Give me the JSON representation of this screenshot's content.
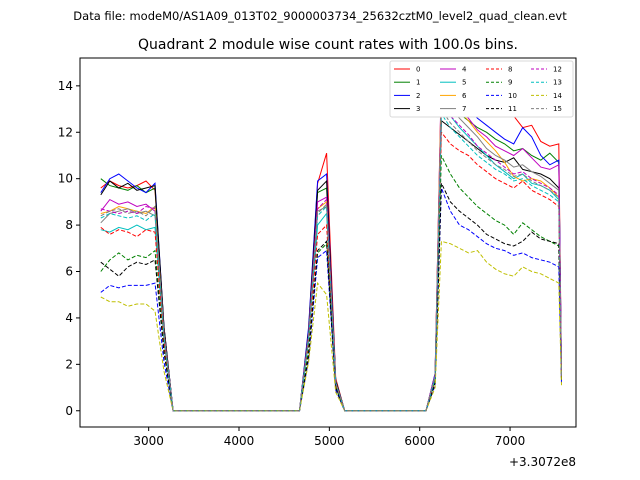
{
  "chart_data": {
    "type": "line",
    "suptitle": "Data file: modeM0/AS1A09_013T02_9000003734_25632cztM0_level2_quad_clean.evt",
    "title": "Quadrant 2 module wise count rates with 100.0s bins.",
    "xlabel": "",
    "ylabel": "",
    "offset_label": "+3.3072e8",
    "xlim": [
      2240,
      7730
    ],
    "ylim": [
      -0.7,
      15.2
    ],
    "xticks": [
      3000,
      4000,
      5000,
      6000,
      7000
    ],
    "xtick_labels": [
      "3000",
      "4000",
      "5000",
      "6000",
      "7000"
    ],
    "yticks": [
      0,
      2,
      4,
      6,
      8,
      10,
      12,
      14
    ],
    "ytick_labels": [
      "0",
      "2",
      "4",
      "6",
      "8",
      "10",
      "12",
      "14"
    ],
    "legend_loc": "upper right",
    "x": [
      2470,
      2570,
      2670,
      2770,
      2870,
      2970,
      3070,
      3170,
      3270,
      3370,
      3470,
      3570,
      3670,
      3770,
      3870,
      3970,
      4070,
      4170,
      4270,
      4370,
      4470,
      4570,
      4670,
      4770,
      4870,
      4970,
      5070,
      5170,
      5270,
      5370,
      5470,
      5570,
      5670,
      5770,
      5870,
      5970,
      6070,
      6170,
      6240,
      6340,
      6440,
      6540,
      6640,
      6740,
      6840,
      6940,
      7040,
      7140,
      7240,
      7340,
      7440,
      7540,
      7570
    ],
    "series": [
      {
        "name": "0",
        "color": "#ff0000",
        "dash": false,
        "values": [
          9.6,
          9.9,
          9.7,
          9.6,
          9.7,
          9.9,
          9.5,
          3.6,
          0,
          0,
          0,
          0,
          0,
          0,
          0,
          0,
          0,
          0,
          0,
          0,
          0,
          0,
          0,
          3.5,
          9.8,
          11.1,
          1.4,
          0,
          0,
          0,
          0,
          0,
          0,
          0,
          0,
          0,
          0,
          1.6,
          14.3,
          13.9,
          13.7,
          13.5,
          13.2,
          12.9,
          12.8,
          13.0,
          12.7,
          12.2,
          12.3,
          11.6,
          11.4,
          11.5,
          1.7
        ]
      },
      {
        "name": "1",
        "color": "#008000",
        "dash": false,
        "values": [
          10.0,
          9.7,
          9.6,
          9.5,
          9.7,
          9.4,
          9.6,
          3.5,
          0,
          0,
          0,
          0,
          0,
          0,
          0,
          0,
          0,
          0,
          0,
          0,
          0,
          0,
          0,
          3.4,
          9.4,
          9.6,
          1.3,
          0,
          0,
          0,
          0,
          0,
          0,
          0,
          0,
          0,
          0,
          1.5,
          13.6,
          13.2,
          12.8,
          12.5,
          12.2,
          12.0,
          11.7,
          11.5,
          11.2,
          11.3,
          11.0,
          10.8,
          11.1,
          10.7,
          1.6
        ]
      },
      {
        "name": "2",
        "color": "#0000ff",
        "dash": false,
        "values": [
          9.4,
          10.0,
          10.2,
          9.9,
          9.6,
          9.4,
          9.8,
          3.6,
          0,
          0,
          0,
          0,
          0,
          0,
          0,
          0,
          0,
          0,
          0,
          0,
          0,
          0,
          0,
          3.6,
          9.9,
          10.2,
          1.3,
          0,
          0,
          0,
          0,
          0,
          0,
          0,
          0,
          0,
          0,
          1.6,
          13.9,
          13.7,
          13.4,
          13.0,
          12.6,
          12.3,
          12.0,
          11.7,
          11.5,
          12.2,
          11.8,
          11.0,
          10.6,
          10.8,
          1.6
        ]
      },
      {
        "name": "3",
        "color": "#000000",
        "dash": false,
        "values": [
          9.3,
          9.9,
          9.6,
          9.8,
          9.5,
          9.6,
          9.7,
          3.6,
          0,
          0,
          0,
          0,
          0,
          0,
          0,
          0,
          0,
          0,
          0,
          0,
          0,
          0,
          0,
          3.4,
          9.5,
          9.9,
          1.3,
          0,
          0,
          0,
          0,
          0,
          0,
          0,
          0,
          0,
          0,
          1.5,
          12.5,
          12.2,
          11.9,
          11.6,
          11.3,
          11.0,
          10.8,
          10.7,
          10.9,
          10.4,
          10.3,
          10.2,
          10.0,
          9.6,
          1.5
        ]
      },
      {
        "name": "4",
        "color": "#bf00bf",
        "dash": false,
        "values": [
          8.6,
          9.1,
          8.9,
          9.0,
          8.8,
          8.9,
          8.6,
          3.3,
          0,
          0,
          0,
          0,
          0,
          0,
          0,
          0,
          0,
          0,
          0,
          0,
          0,
          0,
          0,
          3.2,
          9.0,
          9.2,
          1.2,
          0,
          0,
          0,
          0,
          0,
          0,
          0,
          0,
          0,
          0,
          1.5,
          14.5,
          13.6,
          13.0,
          12.6,
          12.1,
          11.8,
          11.4,
          11.2,
          11.0,
          11.3,
          10.9,
          10.5,
          10.4,
          10.6,
          1.6
        ]
      },
      {
        "name": "5",
        "color": "#00bfbf",
        "dash": false,
        "values": [
          7.8,
          7.7,
          7.9,
          7.8,
          8.0,
          7.8,
          7.9,
          3.0,
          0,
          0,
          0,
          0,
          0,
          0,
          0,
          0,
          0,
          0,
          0,
          0,
          0,
          0,
          0,
          3.0,
          8.0,
          8.5,
          1.1,
          0,
          0,
          0,
          0,
          0,
          0,
          0,
          0,
          0,
          0,
          1.4,
          13.2,
          12.7,
          12.2,
          11.8,
          11.4,
          11.0,
          10.6,
          10.3,
          10.0,
          10.2,
          9.8,
          9.7,
          9.5,
          9.1,
          1.5
        ]
      },
      {
        "name": "6",
        "color": "#ffa500",
        "dash": false,
        "values": [
          8.5,
          8.6,
          8.8,
          8.7,
          8.6,
          8.5,
          8.8,
          3.3,
          0,
          0,
          0,
          0,
          0,
          0,
          0,
          0,
          0,
          0,
          0,
          0,
          0,
          0,
          0,
          3.2,
          8.7,
          9.0,
          1.2,
          0,
          0,
          0,
          0,
          0,
          0,
          0,
          0,
          0,
          0,
          1.5,
          14.2,
          13.4,
          12.9,
          12.5,
          12.0,
          11.6,
          11.2,
          10.7,
          10.1,
          9.9,
          10.0,
          9.9,
          9.6,
          9.2,
          1.6
        ]
      },
      {
        "name": "7",
        "color": "#808080",
        "dash": false,
        "values": [
          8.1,
          8.5,
          8.6,
          8.7,
          8.5,
          8.6,
          8.4,
          3.2,
          0,
          0,
          0,
          0,
          0,
          0,
          0,
          0,
          0,
          0,
          0,
          0,
          0,
          0,
          0,
          3.2,
          8.6,
          8.8,
          1.2,
          0,
          0,
          0,
          0,
          0,
          0,
          0,
          0,
          0,
          0,
          1.5,
          13.6,
          13.0,
          12.6,
          12.2,
          11.8,
          11.3,
          11.0,
          10.8,
          10.5,
          10.6,
          10.3,
          10.1,
          9.8,
          9.5,
          1.5
        ]
      },
      {
        "name": "8",
        "color": "#ff0000",
        "dash": true,
        "values": [
          7.9,
          7.6,
          7.8,
          7.7,
          7.5,
          7.8,
          7.7,
          2.9,
          0,
          0,
          0,
          0,
          0,
          0,
          0,
          0,
          0,
          0,
          0,
          0,
          0,
          0,
          0,
          2.9,
          7.6,
          8.0,
          1.1,
          0,
          0,
          0,
          0,
          0,
          0,
          0,
          0,
          0,
          0,
          1.3,
          12.0,
          11.5,
          11.2,
          11.0,
          10.6,
          10.3,
          10.0,
          9.8,
          9.6,
          9.9,
          9.5,
          9.3,
          9.1,
          8.8,
          1.4
        ]
      },
      {
        "name": "9",
        "color": "#008000",
        "dash": true,
        "values": [
          6.0,
          6.5,
          6.8,
          6.5,
          6.7,
          6.6,
          6.9,
          2.6,
          0,
          0,
          0,
          0,
          0,
          0,
          0,
          0,
          0,
          0,
          0,
          0,
          0,
          0,
          0,
          2.6,
          6.8,
          7.2,
          1.0,
          0,
          0,
          0,
          0,
          0,
          0,
          0,
          0,
          0,
          0,
          1.3,
          11.0,
          10.2,
          9.6,
          9.2,
          8.8,
          8.5,
          8.2,
          8.0,
          7.6,
          8.1,
          7.8,
          7.5,
          7.3,
          7.1,
          1.3
        ]
      },
      {
        "name": "10",
        "color": "#0000ff",
        "dash": true,
        "values": [
          5.1,
          5.4,
          5.3,
          5.4,
          5.4,
          5.4,
          5.5,
          2.1,
          0,
          0,
          0,
          0,
          0,
          0,
          0,
          0,
          0,
          0,
          0,
          0,
          0,
          0,
          0,
          2.2,
          6.6,
          6.9,
          0.9,
          0,
          0,
          0,
          0,
          0,
          0,
          0,
          0,
          0,
          0,
          1.1,
          9.6,
          8.6,
          8.0,
          7.8,
          7.5,
          7.2,
          7.0,
          6.9,
          6.7,
          6.8,
          6.6,
          6.5,
          6.4,
          6.2,
          1.2
        ]
      },
      {
        "name": "11",
        "color": "#000000",
        "dash": true,
        "values": [
          6.4,
          6.1,
          5.8,
          6.2,
          6.4,
          6.3,
          6.5,
          2.5,
          0,
          0,
          0,
          0,
          0,
          0,
          0,
          0,
          0,
          0,
          0,
          0,
          0,
          0,
          0,
          2.4,
          6.9,
          7.3,
          1.0,
          0,
          0,
          0,
          0,
          0,
          0,
          0,
          0,
          0,
          0,
          1.2,
          9.8,
          9.0,
          8.6,
          8.3,
          8.0,
          7.6,
          7.4,
          7.2,
          7.1,
          7.3,
          7.7,
          7.4,
          7.3,
          7.2,
          1.3
        ]
      },
      {
        "name": "12",
        "color": "#bf00bf",
        "dash": true,
        "values": [
          8.7,
          8.6,
          8.5,
          8.6,
          8.5,
          8.8,
          8.7,
          3.3,
          0,
          0,
          0,
          0,
          0,
          0,
          0,
          0,
          0,
          0,
          0,
          0,
          0,
          0,
          0,
          3.3,
          8.7,
          9.1,
          1.2,
          0,
          0,
          0,
          0,
          0,
          0,
          0,
          0,
          0,
          0,
          1.5,
          13.3,
          12.7,
          12.3,
          11.9,
          11.4,
          11.1,
          10.8,
          10.5,
          10.2,
          10.3,
          10.0,
          9.8,
          9.6,
          9.3,
          1.5
        ]
      },
      {
        "name": "13",
        "color": "#00bfbf",
        "dash": true,
        "values": [
          8.3,
          8.5,
          8.4,
          8.3,
          8.4,
          8.2,
          8.5,
          3.2,
          0,
          0,
          0,
          0,
          0,
          0,
          0,
          0,
          0,
          0,
          0,
          0,
          0,
          0,
          0,
          3.1,
          8.4,
          8.8,
          1.2,
          0,
          0,
          0,
          0,
          0,
          0,
          0,
          0,
          0,
          0,
          1.4,
          12.8,
          12.2,
          11.8,
          11.4,
          11.0,
          10.7,
          10.4,
          10.2,
          9.9,
          10.0,
          9.7,
          9.5,
          9.3,
          9.0,
          1.5
        ]
      },
      {
        "name": "14",
        "color": "#bfbf00",
        "dash": true,
        "values": [
          4.9,
          4.7,
          4.7,
          4.5,
          4.6,
          4.6,
          4.3,
          1.7,
          0,
          0,
          0,
          0,
          0,
          0,
          0,
          0,
          0,
          0,
          0,
          0,
          0,
          0,
          0,
          2.1,
          5.5,
          5.0,
          0.8,
          0,
          0,
          0,
          0,
          0,
          0,
          0,
          0,
          0,
          0,
          1.0,
          7.3,
          7.2,
          7.0,
          6.8,
          6.9,
          6.4,
          6.1,
          5.9,
          5.8,
          6.2,
          6.0,
          5.9,
          5.7,
          5.5,
          1.1
        ]
      },
      {
        "name": "15",
        "color": "#808080",
        "dash": true,
        "values": [
          8.4,
          8.6,
          8.7,
          8.5,
          8.6,
          8.4,
          8.8,
          3.3,
          0,
          0,
          0,
          0,
          0,
          0,
          0,
          0,
          0,
          0,
          0,
          0,
          0,
          0,
          0,
          3.2,
          8.5,
          8.9,
          1.2,
          0,
          0,
          0,
          0,
          0,
          0,
          0,
          0,
          0,
          0,
          1.5,
          13.0,
          12.4,
          12.0,
          11.6,
          11.2,
          10.9,
          10.6,
          10.4,
          10.1,
          10.2,
          9.9,
          9.7,
          9.5,
          9.2,
          1.5
        ]
      }
    ]
  }
}
